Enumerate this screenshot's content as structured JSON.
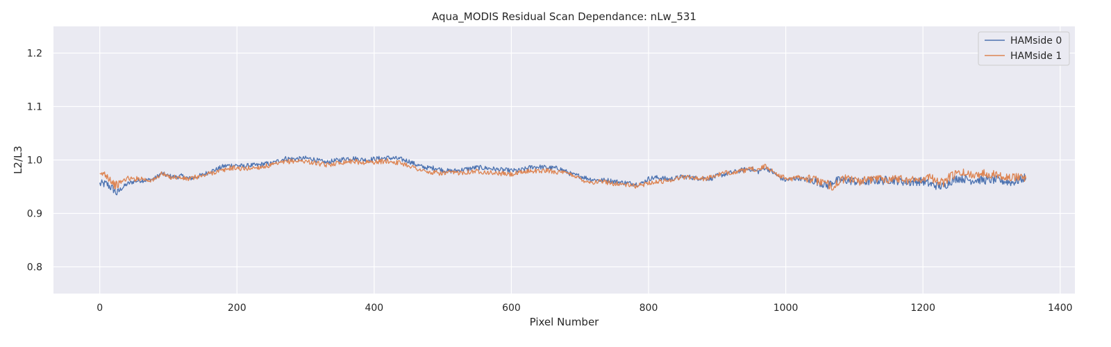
{
  "chart_data": {
    "type": "line",
    "title": "Aqua_MODIS Residual Scan Dependance: nLw_531",
    "xlabel": "Pixel Number",
    "ylabel": "L2/L3",
    "xlim": [
      -67.5,
      1421.5
    ],
    "ylim": [
      0.75,
      1.25
    ],
    "xticks": [
      0,
      200,
      400,
      600,
      800,
      1000,
      1200,
      1400
    ],
    "yticks": [
      0.8,
      0.9,
      1.0,
      1.1,
      1.2
    ],
    "xtick_labels": [
      "0",
      "200",
      "400",
      "600",
      "800",
      "1000",
      "1200",
      "1400"
    ],
    "ytick_labels": [
      "0.8",
      "0.9",
      "1.0",
      "1.1",
      "1.2"
    ],
    "grid": true,
    "legend_position": "top-right",
    "background_color": "#eaeaf2",
    "series": [
      {
        "name": "HAMside 0",
        "color": "#4c72b0",
        "x": [
          0,
          10,
          20,
          25,
          30,
          40,
          50,
          60,
          70,
          80,
          90,
          100,
          110,
          120,
          130,
          140,
          150,
          160,
          170,
          180,
          190,
          200,
          210,
          220,
          230,
          240,
          250,
          260,
          270,
          280,
          290,
          300,
          310,
          320,
          330,
          340,
          350,
          360,
          370,
          380,
          390,
          400,
          410,
          420,
          430,
          440,
          450,
          460,
          470,
          480,
          490,
          500,
          510,
          520,
          530,
          540,
          550,
          560,
          570,
          580,
          590,
          600,
          610,
          620,
          630,
          640,
          650,
          660,
          670,
          680,
          690,
          700,
          710,
          720,
          730,
          740,
          750,
          760,
          770,
          780,
          790,
          800,
          810,
          820,
          830,
          840,
          850,
          860,
          870,
          880,
          890,
          900,
          910,
          920,
          930,
          940,
          950,
          960,
          970,
          980,
          990,
          1000,
          1010,
          1020,
          1030,
          1040,
          1050,
          1060,
          1070,
          1080,
          1090,
          1100,
          1110,
          1120,
          1130,
          1140,
          1150,
          1160,
          1170,
          1180,
          1190,
          1200,
          1210,
          1220,
          1230,
          1240,
          1250,
          1260,
          1270,
          1280,
          1290,
          1300,
          1310,
          1320,
          1330,
          1340,
          1350
        ],
        "y": [
          0.955,
          0.955,
          0.945,
          0.937,
          0.945,
          0.955,
          0.96,
          0.962,
          0.962,
          0.965,
          0.975,
          0.97,
          0.968,
          0.97,
          0.965,
          0.968,
          0.972,
          0.978,
          0.982,
          0.988,
          0.99,
          0.99,
          0.988,
          0.99,
          0.99,
          0.993,
          0.993,
          0.998,
          1.003,
          1.002,
          1.002,
          1.003,
          1.002,
          0.998,
          0.995,
          0.998,
          1.0,
          1.003,
          1.003,
          1.001,
          1.0,
          1.002,
          1.003,
          1.004,
          1.003,
          1.001,
          0.998,
          0.992,
          0.987,
          0.985,
          0.985,
          0.981,
          0.979,
          0.98,
          0.982,
          0.984,
          0.986,
          0.985,
          0.984,
          0.982,
          0.981,
          0.98,
          0.98,
          0.983,
          0.987,
          0.987,
          0.986,
          0.985,
          0.984,
          0.978,
          0.972,
          0.97,
          0.966,
          0.963,
          0.962,
          0.962,
          0.96,
          0.958,
          0.957,
          0.955,
          0.956,
          0.965,
          0.967,
          0.966,
          0.964,
          0.966,
          0.969,
          0.968,
          0.966,
          0.966,
          0.965,
          0.97,
          0.973,
          0.976,
          0.979,
          0.982,
          0.983,
          0.978,
          0.986,
          0.978,
          0.968,
          0.962,
          0.965,
          0.966,
          0.963,
          0.962,
          0.958,
          0.952,
          0.96,
          0.962,
          0.962,
          0.96,
          0.958,
          0.96,
          0.962,
          0.961,
          0.963,
          0.962,
          0.96,
          0.958,
          0.96,
          0.96,
          0.955,
          0.952,
          0.95,
          0.96,
          0.966,
          0.965,
          0.962,
          0.963,
          0.962,
          0.963,
          0.962,
          0.96,
          0.958,
          0.962,
          0.968
        ]
      },
      {
        "name": "HAMside 1",
        "color": "#dd8452",
        "x": [
          0,
          5,
          10,
          15,
          20,
          25,
          30,
          40,
          50,
          60,
          70,
          80,
          90,
          100,
          110,
          120,
          130,
          140,
          150,
          160,
          170,
          180,
          190,
          200,
          210,
          220,
          230,
          240,
          250,
          260,
          270,
          280,
          290,
          300,
          310,
          320,
          330,
          340,
          350,
          360,
          370,
          380,
          390,
          400,
          410,
          420,
          430,
          440,
          450,
          460,
          470,
          480,
          490,
          500,
          510,
          520,
          530,
          540,
          550,
          560,
          570,
          580,
          590,
          600,
          610,
          620,
          630,
          640,
          650,
          660,
          670,
          680,
          690,
          700,
          710,
          720,
          730,
          740,
          750,
          760,
          770,
          780,
          790,
          800,
          810,
          820,
          830,
          840,
          850,
          860,
          870,
          880,
          890,
          900,
          910,
          920,
          930,
          940,
          950,
          960,
          970,
          980,
          990,
          1000,
          1010,
          1020,
          1030,
          1040,
          1050,
          1060,
          1070,
          1080,
          1090,
          1100,
          1110,
          1120,
          1130,
          1140,
          1150,
          1160,
          1170,
          1180,
          1190,
          1200,
          1210,
          1220,
          1230,
          1240,
          1250,
          1260,
          1270,
          1280,
          1290,
          1300,
          1310,
          1320,
          1330,
          1340,
          1350
        ],
        "y": [
          0.968,
          0.975,
          0.972,
          0.965,
          0.955,
          0.952,
          0.958,
          0.966,
          0.964,
          0.966,
          0.962,
          0.963,
          0.975,
          0.968,
          0.968,
          0.966,
          0.964,
          0.968,
          0.97,
          0.975,
          0.978,
          0.98,
          0.985,
          0.985,
          0.983,
          0.985,
          0.986,
          0.988,
          0.99,
          0.993,
          0.996,
          0.998,
          0.998,
          0.998,
          0.995,
          0.993,
          0.99,
          0.993,
          0.995,
          0.997,
          0.998,
          0.995,
          0.996,
          0.996,
          0.997,
          0.998,
          0.996,
          0.994,
          0.99,
          0.985,
          0.98,
          0.976,
          0.976,
          0.975,
          0.976,
          0.976,
          0.977,
          0.978,
          0.979,
          0.978,
          0.976,
          0.975,
          0.974,
          0.973,
          0.975,
          0.978,
          0.98,
          0.979,
          0.98,
          0.979,
          0.977,
          0.975,
          0.972,
          0.965,
          0.96,
          0.958,
          0.96,
          0.958,
          0.956,
          0.955,
          0.953,
          0.951,
          0.953,
          0.958,
          0.958,
          0.96,
          0.962,
          0.965,
          0.968,
          0.968,
          0.966,
          0.965,
          0.967,
          0.972,
          0.975,
          0.977,
          0.978,
          0.98,
          0.983,
          0.982,
          0.988,
          0.98,
          0.972,
          0.965,
          0.965,
          0.968,
          0.966,
          0.963,
          0.96,
          0.955,
          0.95,
          0.962,
          0.966,
          0.962,
          0.96,
          0.962,
          0.966,
          0.965,
          0.964,
          0.966,
          0.965,
          0.962,
          0.963,
          0.966,
          0.968,
          0.962,
          0.956,
          0.97,
          0.974,
          0.976,
          0.972,
          0.974,
          0.975,
          0.974,
          0.972,
          0.97,
          0.966,
          0.97,
          0.966
        ]
      }
    ]
  }
}
